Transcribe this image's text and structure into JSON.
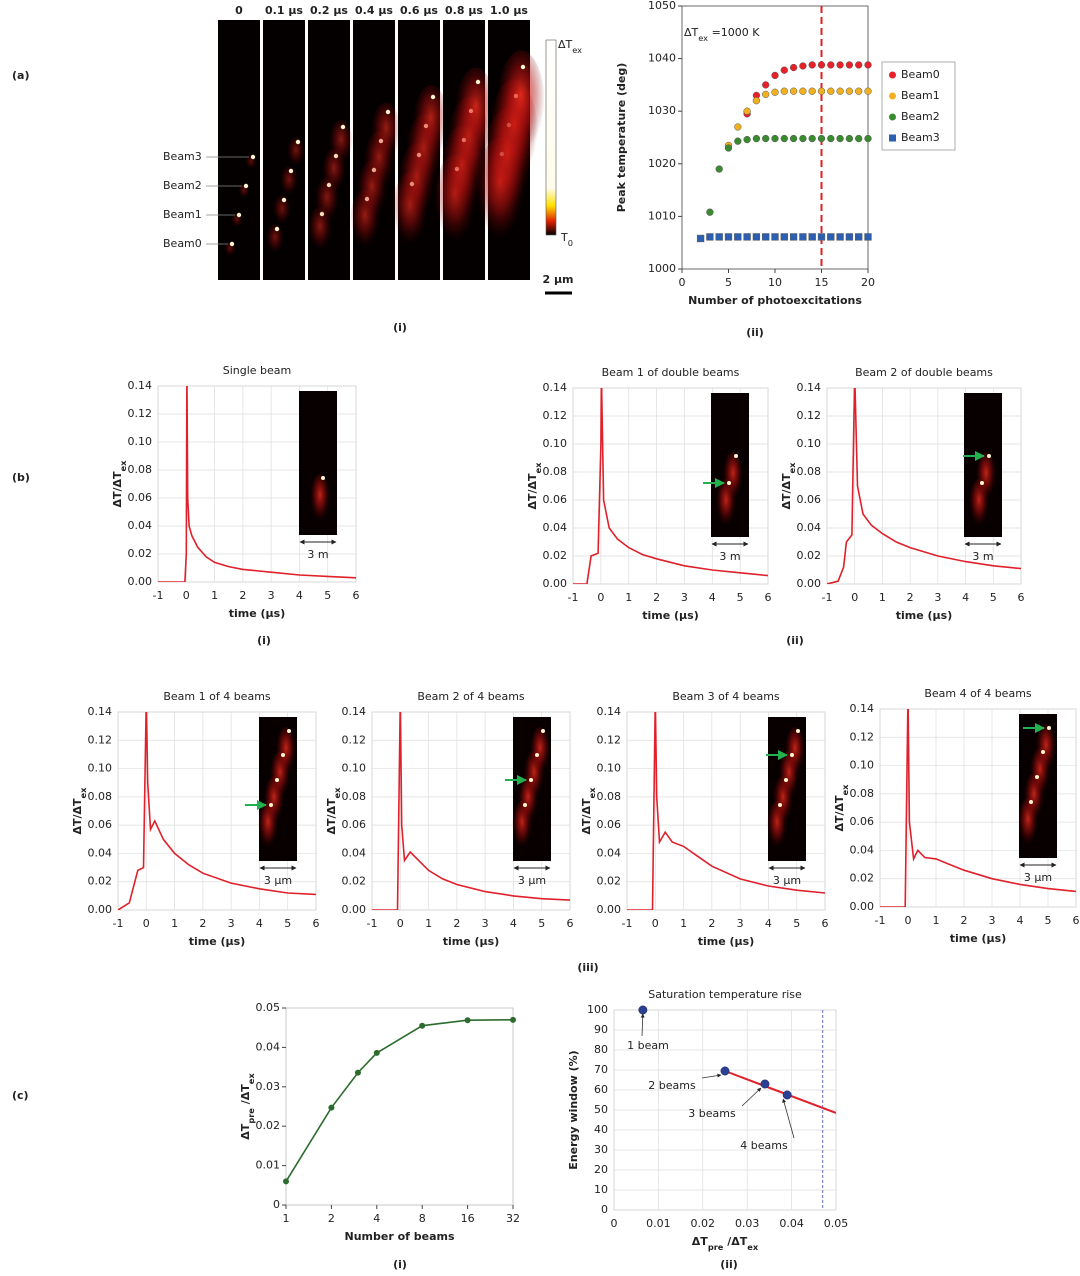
{
  "section_labels": [
    "(a)",
    "(b)",
    "(c)"
  ],
  "panel_labels": [
    "(i)",
    "(ii)",
    "(i)",
    "(ii)",
    "(iii)",
    "(i)",
    "(ii)"
  ],
  "heatmap": {
    "time_labels": [
      "0",
      "0.1 µs",
      "0.2 µs",
      "0.4 µs",
      "0.6 µs",
      "0.8 µs",
      "1.0 µs"
    ],
    "beam_labels": [
      "Beam3",
      "Beam2",
      "Beam1",
      "Beam0"
    ],
    "colorbar_top": [
      "ΔT",
      "ex"
    ],
    "colorbar_bottom": [
      "T",
      "0"
    ],
    "scale_bar": "2 µm"
  },
  "chart_data": [
    {
      "type": "scatter",
      "xlabel": "Number of photoexcitations",
      "ylabel": "Peak temperature (deg)",
      "annotation": [
        "ΔT",
        "ex",
        " =1000 K"
      ],
      "vline": 15,
      "vline_color": "#e02020",
      "legend": "right",
      "grid": false,
      "xlim": [
        0,
        20
      ],
      "xticks": [
        0,
        5,
        10,
        15,
        20
      ],
      "ylim": [
        1000,
        1050
      ],
      "yticks": [
        1000,
        1010,
        1020,
        1030,
        1040,
        1050
      ],
      "series": [
        {
          "name": "Beam0",
          "color": "#e8202a",
          "marker": "circle",
          "x": [
            7,
            8,
            9,
            10,
            11,
            12,
            13,
            14,
            15,
            16,
            17,
            18,
            19,
            20
          ],
          "values": [
            1029.5,
            1033,
            1035,
            1036.8,
            1037.8,
            1038.3,
            1038.6,
            1038.8,
            1038.8,
            1038.8,
            1038.8,
            1038.8,
            1038.8,
            1038.8
          ]
        },
        {
          "name": "Beam1",
          "color": "#f0b020",
          "marker": "circle",
          "x": [
            5,
            6,
            7,
            8,
            9,
            10,
            11,
            12,
            13,
            14,
            15,
            16,
            17,
            18,
            19,
            20
          ],
          "values": [
            1023.5,
            1027,
            1030,
            1032,
            1033.2,
            1033.6,
            1033.8,
            1033.8,
            1033.8,
            1033.8,
            1033.8,
            1033.8,
            1033.8,
            1033.8,
            1033.8,
            1033.8
          ]
        },
        {
          "name": "Beam2",
          "color": "#3a8a30",
          "marker": "circle",
          "x": [
            3,
            4,
            5,
            6,
            7,
            8,
            9,
            10,
            11,
            12,
            13,
            14,
            15,
            16,
            17,
            18,
            19,
            20
          ],
          "values": [
            1010.8,
            1019,
            1023,
            1024.3,
            1024.6,
            1024.8,
            1024.8,
            1024.8,
            1024.8,
            1024.8,
            1024.8,
            1024.8,
            1024.8,
            1024.8,
            1024.8,
            1024.8,
            1024.8,
            1024.8
          ]
        },
        {
          "name": "Beam3",
          "color": "#2d5fb0",
          "marker": "square",
          "x": [
            2,
            3,
            4,
            5,
            6,
            7,
            8,
            9,
            10,
            11,
            12,
            13,
            14,
            15,
            16,
            17,
            18,
            19,
            20
          ],
          "values": [
            1005.8,
            1006.1,
            1006.1,
            1006.1,
            1006.1,
            1006.1,
            1006.1,
            1006.1,
            1006.1,
            1006.1,
            1006.1,
            1006.1,
            1006.1,
            1006.1,
            1006.1,
            1006.1,
            1006.1,
            1006.1,
            1006.1
          ]
        }
      ]
    },
    {
      "type": "line",
      "title": "Single beam",
      "xlabel": "time (µs)",
      "ylabel": [
        "ΔT/ΔT",
        "ex"
      ],
      "color": "#e0202a",
      "grid": true,
      "inset_label": "3 m",
      "xlim": [
        -1,
        6
      ],
      "xticks": [
        -1,
        0,
        1,
        2,
        3,
        4,
        5,
        6
      ],
      "ylim": [
        0,
        0.14
      ],
      "yticks": [
        {
          "value": 0,
          "label": "0.00"
        },
        0.02,
        0.04,
        0.06,
        0.08,
        {
          "value": 0.1,
          "label": "0.10"
        },
        0.12,
        0.14
      ],
      "x": [
        -1,
        -0.05,
        0,
        0.02,
        0.05,
        0.1,
        0.2,
        0.4,
        0.7,
        1,
        1.5,
        2,
        3,
        4,
        5,
        6
      ],
      "values": [
        0,
        0,
        0.02,
        0.15,
        0.06,
        0.04,
        0.033,
        0.025,
        0.018,
        0.014,
        0.011,
        0.009,
        0.007,
        0.005,
        0.004,
        0.003
      ]
    },
    {
      "type": "line",
      "title": "Beam 1 of double beams",
      "xlabel": "time (µs)",
      "ylabel": [
        "ΔT/ΔT",
        "ex"
      ],
      "color": "#e0202a",
      "grid": true,
      "inset_label": "3 m",
      "xlim": [
        -1,
        6
      ],
      "xticks": [
        -1,
        0,
        1,
        2,
        3,
        4,
        5,
        6
      ],
      "ylim": [
        0,
        0.14
      ],
      "yticks": [
        {
          "value": 0,
          "label": "0.00"
        },
        0.02,
        0.04,
        0.06,
        0.08,
        {
          "value": 0.1,
          "label": "0.10"
        },
        0.12,
        0.14
      ],
      "x": [
        -1,
        -0.5,
        -0.35,
        -0.1,
        0,
        0.02,
        0.1,
        0.3,
        0.6,
        1,
        1.5,
        2,
        3,
        4,
        5,
        6
      ],
      "values": [
        0,
        0,
        0.02,
        0.022,
        0.1,
        0.15,
        0.06,
        0.04,
        0.032,
        0.026,
        0.021,
        0.018,
        0.013,
        0.01,
        0.008,
        0.006
      ]
    },
    {
      "type": "line",
      "title": "Beam 2 of double beams",
      "xlabel": "time (µs)",
      "ylabel": [
        "ΔT/ΔT",
        "ex"
      ],
      "color": "#e0202a",
      "grid": true,
      "inset_label": "3 m",
      "xlim": [
        -1,
        6
      ],
      "xticks": [
        -1,
        0,
        1,
        2,
        3,
        4,
        5,
        6
      ],
      "ylim": [
        0,
        0.14
      ],
      "yticks": [
        {
          "value": 0,
          "label": "0.00"
        },
        0.02,
        0.04,
        0.06,
        0.08,
        {
          "value": 0.1,
          "label": "0.10"
        },
        0.12,
        0.14
      ],
      "x": [
        -1,
        -0.6,
        -0.4,
        -0.3,
        -0.1,
        0,
        0.1,
        0.3,
        0.6,
        1,
        1.5,
        2,
        3,
        4,
        5,
        6
      ],
      "values": [
        0,
        0.002,
        0.012,
        0.03,
        0.035,
        0.15,
        0.07,
        0.05,
        0.042,
        0.036,
        0.03,
        0.026,
        0.02,
        0.016,
        0.013,
        0.011
      ]
    },
    {
      "type": "line",
      "title": "Beam 1 of 4 beams",
      "xlabel": "time (µs)",
      "ylabel": [
        "ΔT/ΔT",
        "ex"
      ],
      "color": "#e0202a",
      "grid": true,
      "inset_label": "3 µm",
      "xlim": [
        -1,
        6
      ],
      "xticks": [
        -1,
        0,
        1,
        2,
        3,
        4,
        5,
        6
      ],
      "ylim": [
        0,
        0.14
      ],
      "yticks": [
        {
          "value": 0,
          "label": "0.00"
        },
        0.02,
        0.04,
        0.06,
        0.08,
        {
          "value": 0.1,
          "label": "0.10"
        },
        0.12,
        0.14
      ],
      "x": [
        -1,
        -0.6,
        -0.3,
        -0.1,
        0,
        0.05,
        0.15,
        0.3,
        0.6,
        1,
        1.5,
        2,
        3,
        4,
        5,
        6
      ],
      "values": [
        0,
        0.005,
        0.028,
        0.03,
        0.15,
        0.09,
        0.057,
        0.063,
        0.05,
        0.04,
        0.032,
        0.026,
        0.019,
        0.015,
        0.012,
        0.011
      ]
    },
    {
      "type": "line",
      "title": "Beam 2 of 4 beams",
      "xlabel": "time (µs)",
      "ylabel": [
        "ΔT/ΔT",
        "ex"
      ],
      "color": "#e0202a",
      "grid": true,
      "inset_label": "3 µm",
      "xlim": [
        -1,
        6
      ],
      "xticks": [
        -1,
        0,
        1,
        2,
        3,
        4,
        5,
        6
      ],
      "ylim": [
        0,
        0.14
      ],
      "yticks": [
        {
          "value": 0,
          "label": "0.00"
        },
        0.02,
        0.04,
        0.06,
        0.08,
        {
          "value": 0.1,
          "label": "0.10"
        },
        0.12,
        0.14
      ],
      "x": [
        -1,
        -0.1,
        0,
        0.05,
        0.15,
        0.35,
        0.6,
        1,
        1.5,
        2,
        3,
        4,
        5,
        6
      ],
      "values": [
        0,
        0,
        0.15,
        0.06,
        0.035,
        0.041,
        0.036,
        0.028,
        0.022,
        0.018,
        0.013,
        0.01,
        0.008,
        0.007
      ]
    },
    {
      "type": "line",
      "title": "Beam 3 of 4 beams",
      "xlabel": "time (µs)",
      "ylabel": [
        "ΔT/ΔT",
        "ex"
      ],
      "color": "#e0202a",
      "grid": true,
      "inset_label": "3 µm",
      "xlim": [
        -1,
        6
      ],
      "xticks": [
        -1,
        0,
        1,
        2,
        3,
        4,
        5,
        6
      ],
      "ylim": [
        0,
        0.14
      ],
      "yticks": [
        {
          "value": 0,
          "label": "0.00"
        },
        0.02,
        0.04,
        0.06,
        0.08,
        {
          "value": 0.1,
          "label": "0.10"
        },
        0.12,
        0.14
      ],
      "x": [
        -1,
        -0.1,
        0,
        0.05,
        0.15,
        0.35,
        0.6,
        1,
        1.5,
        2,
        3,
        4,
        5,
        6
      ],
      "values": [
        0,
        0,
        0.15,
        0.08,
        0.048,
        0.055,
        0.048,
        0.045,
        0.038,
        0.031,
        0.022,
        0.017,
        0.014,
        0.012
      ]
    },
    {
      "type": "line",
      "title": "Beam 4 of 4 beams",
      "xlabel": "time (µs)",
      "ylabel": [
        "ΔT/ΔT",
        "ex"
      ],
      "color": "#e0202a",
      "grid": true,
      "inset_label": "3 µm",
      "xlim": [
        -1,
        6
      ],
      "xticks": [
        -1,
        0,
        1,
        2,
        3,
        4,
        5,
        6
      ],
      "ylim": [
        0,
        0.14
      ],
      "yticks": [
        {
          "value": 0,
          "label": "0.00"
        },
        0.02,
        0.04,
        0.06,
        0.08,
        {
          "value": 0.1,
          "label": "0.10"
        },
        0.12,
        0.14
      ],
      "x": [
        -1,
        -0.1,
        0,
        0.05,
        0.2,
        0.35,
        0.6,
        1,
        1.5,
        2,
        3,
        4,
        5,
        6
      ],
      "values": [
        0,
        0,
        0.15,
        0.06,
        0.034,
        0.04,
        0.035,
        0.034,
        0.03,
        0.026,
        0.02,
        0.016,
        0.013,
        0.011
      ]
    },
    {
      "type": "line",
      "xlabel": "Number of beams",
      "ylabel": [
        "ΔT",
        "pre",
        " /ΔT",
        "ex"
      ],
      "color": "#2e6b2e",
      "markers": true,
      "grid": false,
      "xscale": "log",
      "xlim": [
        1,
        32
      ],
      "xticks": [
        1,
        2,
        4,
        8,
        16,
        32
      ],
      "ylim": [
        0,
        0.05
      ],
      "yticks": [
        0,
        0.01,
        0.02,
        0.03,
        0.04,
        0.05
      ],
      "x": [
        1,
        2,
        3,
        4,
        8,
        16,
        32
      ],
      "values": [
        0.006,
        0.0247,
        0.0336,
        0.0386,
        0.0455,
        0.0469,
        0.047
      ]
    },
    {
      "type": "scatter",
      "title": "Saturation temperature rise",
      "xlabel": [
        "ΔT",
        "pre",
        " /ΔT",
        "ex"
      ],
      "ylabel": "Energy window (%)",
      "grid": true,
      "vline": 0.047,
      "vline_color": "#6070c0",
      "xlim": [
        0,
        0.05
      ],
      "xticks": [
        0,
        0.01,
        0.02,
        0.03,
        0.04,
        0.05
      ],
      "ylim": [
        0,
        100
      ],
      "yticks": [
        0,
        10,
        20,
        30,
        40,
        50,
        60,
        70,
        80,
        90,
        100
      ],
      "fit_line": {
        "color": "#e0202a",
        "x": [
          0.025,
          0.05
        ],
        "values": [
          69.5,
          48.5
        ]
      },
      "annotations": [
        "1 beam",
        "2 beams",
        "3 beams",
        "4 beams"
      ],
      "annotation_color": "#2e7d32",
      "series": [
        {
          "color": "#2b3f93",
          "marker": "circle",
          "x": [
            0.0065,
            0.025,
            0.034,
            0.039
          ],
          "values": [
            100,
            69.5,
            63,
            57.5
          ]
        }
      ]
    }
  ]
}
